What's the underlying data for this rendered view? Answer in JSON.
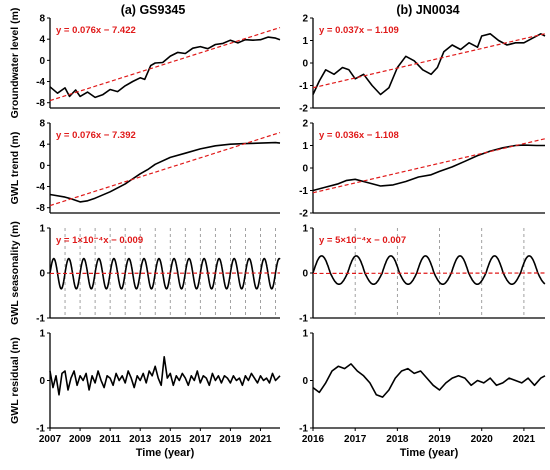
{
  "chart_data": [
    {
      "id": "a1",
      "panel": "a",
      "type": "line",
      "title": "(a) GS9345",
      "ylabel": "Groundwater level (m)",
      "xlabel": "",
      "xlim": [
        2007,
        2022.3
      ],
      "ylim": [
        -9,
        8
      ],
      "yticks": [
        -8,
        -4,
        0,
        4,
        8
      ],
      "equation": "y = 0.076x − 7.422",
      "trend": {
        "x0": 2007,
        "y0": -7.6,
        "x1": 2022.3,
        "y1": 6.2
      },
      "series": [
        {
          "x": [
            2007,
            2007.5,
            2008,
            2008.3,
            2008.7,
            2009,
            2009.5,
            2010,
            2010.5,
            2011,
            2011.5,
            2012,
            2012.5,
            2013,
            2013.3,
            2013.7,
            2014,
            2014.5,
            2015,
            2015.5,
            2016,
            2016.5,
            2017,
            2017.5,
            2018,
            2018.5,
            2019,
            2019.5,
            2020,
            2020.5,
            2021,
            2021.5,
            2022,
            2022.3
          ],
          "y": [
            -5,
            -6.2,
            -5.2,
            -6.8,
            -5.6,
            -6.8,
            -6,
            -7,
            -6.5,
            -5.5,
            -5.9,
            -4.8,
            -4,
            -3.3,
            -3.6,
            -1,
            -0.5,
            -0.4,
            0.8,
            1.5,
            1.3,
            2.3,
            2.6,
            2.2,
            3,
            3.2,
            3.8,
            3.3,
            3.9,
            3.8,
            3.9,
            4.4,
            4.2,
            3.9
          ]
        }
      ],
      "vlines": []
    },
    {
      "id": "b1",
      "panel": "b",
      "type": "line",
      "title": "(b) JN0034",
      "ylabel": "",
      "xlabel": "",
      "xlim": [
        2016,
        2021.5
      ],
      "ylim": [
        -2,
        2
      ],
      "yticks": [
        -2,
        -1,
        0,
        1,
        2
      ],
      "equation": "y = 0.037x − 1.109",
      "trend": {
        "x0": 2016,
        "y0": -1.1,
        "x1": 2021.5,
        "y1": 1.3
      },
      "series": [
        {
          "x": [
            2016,
            2016.15,
            2016.3,
            2016.5,
            2016.7,
            2016.85,
            2017,
            2017.2,
            2017.4,
            2017.6,
            2017.8,
            2018,
            2018.2,
            2018.4,
            2018.6,
            2018.8,
            2018.95,
            2019.1,
            2019.3,
            2019.5,
            2019.7,
            2019.9,
            2020,
            2020.2,
            2020.4,
            2020.6,
            2020.8,
            2021,
            2021.2,
            2021.4,
            2021.5
          ],
          "y": [
            -1.4,
            -0.8,
            -0.3,
            -0.5,
            -0.2,
            -0.3,
            -0.7,
            -0.5,
            -1,
            -1.4,
            -1.1,
            -0.2,
            0.3,
            0.1,
            -0.3,
            -0.5,
            -0.2,
            0.5,
            0.8,
            0.6,
            0.9,
            0.7,
            1.2,
            1.3,
            1.0,
            0.8,
            0.9,
            0.9,
            1.1,
            1.3,
            1.2
          ]
        }
      ],
      "vlines": []
    },
    {
      "id": "a2",
      "panel": "a",
      "type": "line",
      "title": "",
      "ylabel": "GWL trend (m)",
      "xlabel": "",
      "xlim": [
        2007,
        2022.3
      ],
      "ylim": [
        -9,
        8
      ],
      "yticks": [
        -8,
        -4,
        0,
        4,
        8
      ],
      "equation": "y = 0.076x − 7.392",
      "trend": {
        "x0": 2007,
        "y0": -7.6,
        "x1": 2022.3,
        "y1": 6.2
      },
      "series": [
        {
          "x": [
            2007,
            2008,
            2008.5,
            2009,
            2009.5,
            2010,
            2011,
            2012,
            2013,
            2013.5,
            2014,
            2015,
            2016,
            2017,
            2018,
            2019,
            2020,
            2021,
            2022,
            2022.3
          ],
          "y": [
            -5.5,
            -6,
            -6.4,
            -6.9,
            -6.7,
            -6.2,
            -5,
            -3.5,
            -1.6,
            -0.8,
            0.2,
            1.5,
            2.3,
            3.1,
            3.7,
            4.0,
            4.1,
            4.2,
            4.3,
            4.2
          ]
        }
      ],
      "vlines": []
    },
    {
      "id": "b2",
      "panel": "b",
      "type": "line",
      "title": "",
      "ylabel": "",
      "xlabel": "",
      "xlim": [
        2016,
        2021.5
      ],
      "ylim": [
        -2,
        2
      ],
      "yticks": [
        -2,
        -1,
        0,
        1,
        2
      ],
      "equation": "y = 0.036x − 1.108",
      "trend": {
        "x0": 2016,
        "y0": -1.1,
        "x1": 2021.5,
        "y1": 1.3
      },
      "series": [
        {
          "x": [
            2016,
            2016.3,
            2016.6,
            2016.8,
            2017,
            2017.3,
            2017.6,
            2017.9,
            2018.2,
            2018.5,
            2018.8,
            2019,
            2019.3,
            2019.6,
            2019.9,
            2020.2,
            2020.5,
            2020.8,
            2021,
            2021.3,
            2021.5
          ],
          "y": [
            -1.0,
            -0.85,
            -0.7,
            -0.55,
            -0.5,
            -0.65,
            -0.8,
            -0.75,
            -0.6,
            -0.4,
            -0.3,
            -0.15,
            0.05,
            0.3,
            0.55,
            0.75,
            0.9,
            1.0,
            1.02,
            1.0,
            1.0
          ]
        }
      ],
      "vlines": []
    },
    {
      "id": "a3",
      "panel": "a",
      "type": "line",
      "title": "",
      "ylabel": "GWL seasonality (m)",
      "xlabel": "",
      "xlim": [
        2007,
        2022.3
      ],
      "ylim": [
        -1,
        1
      ],
      "yticks": [
        -1,
        0,
        1
      ],
      "equation": "y = 1×10⁻⁴x − 0.009",
      "trend": {
        "x0": 2007,
        "y0": -0.01,
        "x1": 2022.3,
        "y1": 0.0
      },
      "seasonal": {
        "start": 2007,
        "end": 2022.3,
        "period": 1,
        "amplitude_pos": 0.32,
        "amplitude_neg": 0.35
      },
      "series": [],
      "vlines": [
        2008,
        2009,
        2010,
        2011,
        2012,
        2013,
        2014,
        2015,
        2016,
        2017,
        2018,
        2019,
        2020,
        2021,
        2022
      ]
    },
    {
      "id": "b3",
      "panel": "b",
      "type": "line",
      "title": "",
      "ylabel": "",
      "xlabel": "",
      "xlim": [
        2016,
        2021.5
      ],
      "ylim": [
        -1,
        1
      ],
      "yticks": [
        -1,
        0,
        1
      ],
      "equation": "y = 5×10⁻⁴x − 0.007",
      "trend": {
        "x0": 2016,
        "y0": -0.01,
        "x1": 2021.5,
        "y1": 0.0
      },
      "seasonal": {
        "start": 2016,
        "end": 2021.5,
        "period": 0.82,
        "amplitude_pos": 0.38,
        "amplitude_neg": 0.25
      },
      "series": [],
      "vlines": [
        2017,
        2018,
        2019,
        2020,
        2021
      ]
    },
    {
      "id": "a4",
      "panel": "a",
      "type": "line",
      "title": "",
      "ylabel": "GWL residual (m)",
      "xlabel": "Time (year)",
      "xlim": [
        2007,
        2022.3
      ],
      "ylim": [
        -1,
        1
      ],
      "yticks": [
        -1,
        0,
        1
      ],
      "xticks": [
        2007,
        2009,
        2011,
        2013,
        2015,
        2017,
        2019,
        2021
      ],
      "equation": "",
      "trend": null,
      "series": [
        {
          "x": [
            2007,
            2007.2,
            2007.4,
            2007.6,
            2007.8,
            2008,
            2008.2,
            2008.4,
            2008.6,
            2008.8,
            2009,
            2009.2,
            2009.4,
            2009.6,
            2009.8,
            2010,
            2010.2,
            2010.4,
            2010.6,
            2010.8,
            2011,
            2011.2,
            2011.4,
            2011.6,
            2011.8,
            2012,
            2012.2,
            2012.4,
            2012.6,
            2012.8,
            2013,
            2013.2,
            2013.4,
            2013.6,
            2013.8,
            2014,
            2014.2,
            2014.4,
            2014.6,
            2014.8,
            2015,
            2015.2,
            2015.4,
            2015.6,
            2015.8,
            2016,
            2016.2,
            2016.4,
            2016.6,
            2016.8,
            2017,
            2017.2,
            2017.4,
            2017.6,
            2017.8,
            2018,
            2018.2,
            2018.4,
            2018.6,
            2018.8,
            2019,
            2019.2,
            2019.4,
            2019.6,
            2019.8,
            2020,
            2020.2,
            2020.4,
            2020.6,
            2020.8,
            2021,
            2021.2,
            2021.4,
            2021.6,
            2021.8,
            2022,
            2022.3
          ],
          "y": [
            0.2,
            -0.15,
            0.1,
            -0.3,
            0.15,
            0.2,
            -0.2,
            0.05,
            0.2,
            -0.1,
            0.1,
            0,
            0.15,
            -0.2,
            0.1,
            -0.05,
            0.2,
            0,
            -0.15,
            0.1,
            0.05,
            -0.1,
            0.15,
            0,
            0.1,
            -0.05,
            0.2,
            0.05,
            -0.15,
            0.1,
            0,
            0.15,
            -0.05,
            0.2,
            0.1,
            0.3,
            0.05,
            -0.1,
            0.5,
            0.05,
            0.15,
            -0.1,
            0.1,
            0,
            0.15,
            0.05,
            -0.1,
            0.1,
            0,
            0.2,
            -0.05,
            0.1,
            0.05,
            -0.1,
            0.15,
            0,
            0.1,
            -0.05,
            0.1,
            0.05,
            -0.05,
            0.1,
            0,
            0.05,
            -0.1,
            0.1,
            0,
            0.15,
            0.05,
            -0.05,
            0.1,
            0,
            0.05,
            -0.05,
            0.15,
            0,
            0.1
          ]
        }
      ],
      "vlines": []
    },
    {
      "id": "b4",
      "panel": "b",
      "type": "line",
      "title": "",
      "ylabel": "",
      "xlabel": "Time (year)",
      "xlim": [
        2016,
        2021.5
      ],
      "ylim": [
        -1,
        1
      ],
      "yticks": [
        -1,
        0,
        1
      ],
      "xticks": [
        2016,
        2017,
        2018,
        2019,
        2020,
        2021
      ],
      "equation": "",
      "trend": null,
      "series": [
        {
          "x": [
            2016,
            2016.15,
            2016.3,
            2016.45,
            2016.6,
            2016.75,
            2016.9,
            2017.05,
            2017.2,
            2017.35,
            2017.5,
            2017.65,
            2017.8,
            2017.95,
            2018.1,
            2018.25,
            2018.4,
            2018.55,
            2018.7,
            2018.85,
            2019,
            2019.15,
            2019.3,
            2019.45,
            2019.6,
            2019.75,
            2019.9,
            2020.05,
            2020.2,
            2020.35,
            2020.5,
            2020.65,
            2020.8,
            2020.95,
            2021.1,
            2021.25,
            2021.4,
            2021.5
          ],
          "y": [
            -0.15,
            -0.25,
            -0.05,
            0.2,
            0.3,
            0.25,
            0.35,
            0.2,
            0.1,
            -0.05,
            -0.3,
            -0.35,
            -0.2,
            0.05,
            0.2,
            0.25,
            0.15,
            0.2,
            0.05,
            -0.1,
            -0.2,
            -0.05,
            0.05,
            0.1,
            0.05,
            -0.1,
            0,
            -0.05,
            0.05,
            -0.1,
            -0.05,
            0.05,
            0,
            -0.05,
            0.05,
            -0.1,
            0.05,
            0.1
          ]
        }
      ],
      "vlines": []
    }
  ]
}
